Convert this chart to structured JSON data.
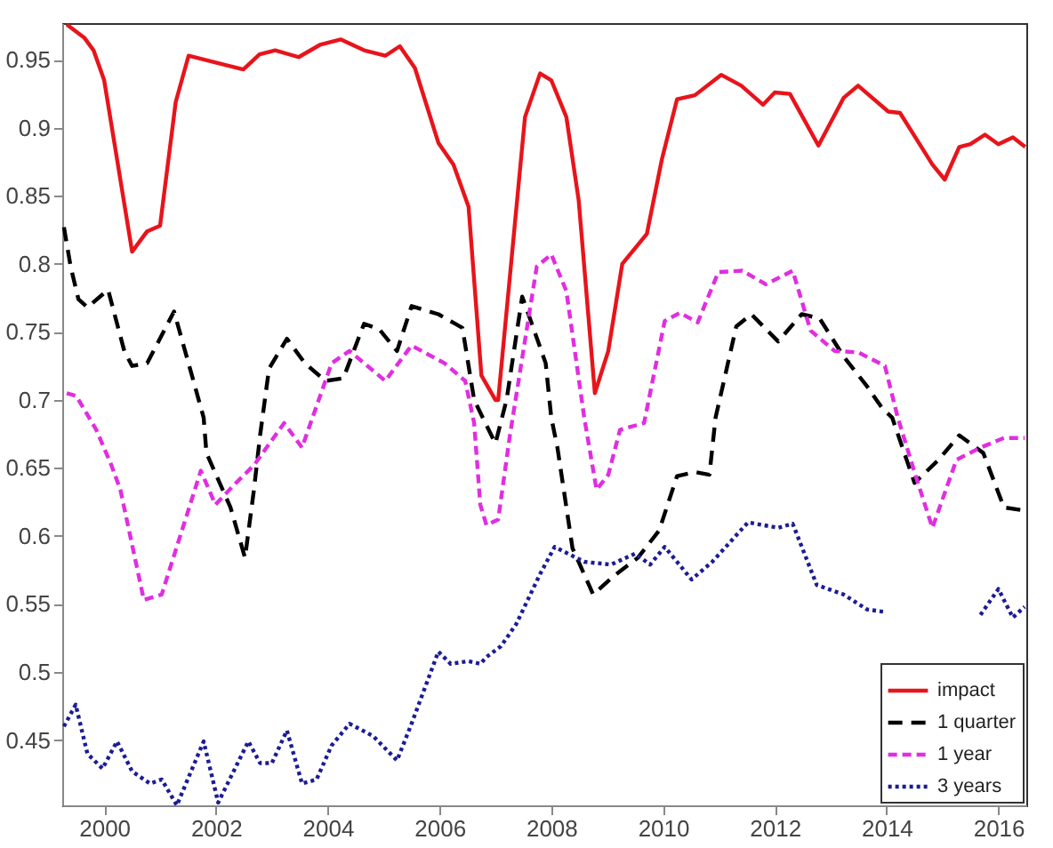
{
  "chart_data": {
    "type": "line",
    "xlim": [
      1999.25,
      2016.5
    ],
    "xticks": [
      2000,
      2002,
      2004,
      2006,
      2008,
      2010,
      2012,
      2014,
      2016
    ],
    "ylim": [
      0.402,
      0.977
    ],
    "yticks": [
      0.45,
      0.5,
      0.55,
      0.6,
      0.65,
      0.7,
      0.75,
      0.8,
      0.85,
      0.9,
      0.95
    ],
    "grid": false,
    "legend": "bottom right",
    "marker": "none",
    "series": [
      {
        "name": "impact",
        "color": "#e8141b",
        "line_style": "solid",
        "x": [
          1999.33,
          1999.65,
          1999.81,
          2000.0,
          2000.5,
          2000.77,
          2001.0,
          2001.28,
          2001.51,
          2002.49,
          2002.78,
          2003.06,
          2003.48,
          2003.86,
          2004.23,
          2004.65,
          2005.03,
          2005.29,
          2005.56,
          2005.98,
          2006.25,
          2006.52,
          2006.75,
          2007.0,
          2007.05,
          2007.53,
          2007.8,
          2008.0,
          2008.27,
          2008.49,
          2008.78,
          2009.02,
          2009.27,
          2009.71,
          2009.98,
          2010.25,
          2010.57,
          2011.04,
          2011.4,
          2011.79,
          2012.0,
          2012.27,
          2012.78,
          2013.23,
          2013.49,
          2014.03,
          2014.24,
          2014.82,
          2015.04,
          2015.3,
          2015.5,
          2015.76,
          2016.0,
          2016.26,
          2016.48
        ],
        "values": [
          0.976,
          0.966,
          0.957,
          0.935,
          0.809,
          0.824,
          0.828,
          0.919,
          0.953,
          0.943,
          0.954,
          0.957,
          0.952,
          0.961,
          0.965,
          0.957,
          0.953,
          0.96,
          0.944,
          0.889,
          0.873,
          0.842,
          0.718,
          0.7,
          0.7,
          0.908,
          0.94,
          0.935,
          0.908,
          0.847,
          0.705,
          0.736,
          0.8,
          0.822,
          0.877,
          0.921,
          0.924,
          0.939,
          0.931,
          0.917,
          0.926,
          0.925,
          0.887,
          0.922,
          0.931,
          0.912,
          0.911,
          0.873,
          0.862,
          0.886,
          0.888,
          0.895,
          0.888,
          0.893,
          0.886
        ]
      },
      {
        "name": "1 quarter",
        "color": "#000000",
        "line_style": "dashed",
        "x": [
          1999.28,
          1999.4,
          1999.54,
          1999.7,
          2000.07,
          2000.36,
          2000.5,
          2000.77,
          2001.25,
          2001.57,
          2001.78,
          2001.83,
          2002.26,
          2002.52,
          2002.68,
          2002.79,
          2002.95,
          2003.27,
          2003.59,
          2003.96,
          2004.28,
          2004.65,
          2004.92,
          2005.24,
          2005.5,
          2005.98,
          2006.41,
          2006.62,
          2007.0,
          2007.2,
          2007.48,
          2007.9,
          2008.0,
          2008.11,
          2008.38,
          2008.75,
          2009.13,
          2009.55,
          2009.93,
          2010.25,
          2010.57,
          2010.83,
          2010.94,
          2011.31,
          2011.58,
          2012.06,
          2012.48,
          2012.8,
          2013.23,
          2013.65,
          2013.92,
          2014.1,
          2014.5,
          2014.93,
          2015.3,
          2015.73,
          2016.1,
          2016.42
        ],
        "values": [
          0.827,
          0.798,
          0.774,
          0.768,
          0.781,
          0.736,
          0.725,
          0.727,
          0.765,
          0.718,
          0.687,
          0.661,
          0.621,
          0.584,
          0.634,
          0.674,
          0.723,
          0.745,
          0.727,
          0.714,
          0.716,
          0.756,
          0.752,
          0.736,
          0.769,
          0.763,
          0.753,
          0.7,
          0.668,
          0.7,
          0.776,
          0.727,
          0.687,
          0.665,
          0.591,
          0.557,
          0.571,
          0.584,
          0.604,
          0.644,
          0.647,
          0.645,
          0.687,
          0.754,
          0.763,
          0.743,
          0.763,
          0.76,
          0.732,
          0.71,
          0.694,
          0.687,
          0.639,
          0.656,
          0.674,
          0.661,
          0.621,
          0.619
        ]
      },
      {
        "name": "1 year",
        "color": "#e02ee0",
        "line_style": "dashed",
        "x": [
          1999.33,
          1999.5,
          1999.86,
          2000.13,
          2000.29,
          2000.71,
          2001.03,
          2001.73,
          2001.99,
          2002.36,
          2002.68,
          2003.22,
          2003.54,
          2004.07,
          2004.39,
          2005.03,
          2005.5,
          2006.09,
          2006.46,
          2006.62,
          2006.73,
          2006.84,
          2007.05,
          2007.26,
          2007.74,
          2008.0,
          2008.27,
          2008.59,
          2008.81,
          2009.02,
          2009.23,
          2009.66,
          2010.03,
          2010.3,
          2010.62,
          2010.99,
          2011.42,
          2011.84,
          2012.32,
          2012.64,
          2013.07,
          2013.49,
          2013.97,
          2014.2,
          2014.56,
          2014.82,
          2015.25,
          2015.68,
          2016.1,
          2016.47
        ],
        "values": [
          0.705,
          0.703,
          0.678,
          0.652,
          0.634,
          0.553,
          0.557,
          0.648,
          0.623,
          0.639,
          0.652,
          0.683,
          0.665,
          0.727,
          0.736,
          0.714,
          0.74,
          0.727,
          0.714,
          0.683,
          0.623,
          0.608,
          0.612,
          0.674,
          0.798,
          0.807,
          0.78,
          0.687,
          0.634,
          0.645,
          0.678,
          0.683,
          0.758,
          0.764,
          0.757,
          0.794,
          0.795,
          0.785,
          0.795,
          0.751,
          0.736,
          0.735,
          0.725,
          0.687,
          0.639,
          0.606,
          0.656,
          0.665,
          0.672,
          0.672
        ]
      },
      {
        "name": "3 years",
        "color": "#1c1c96",
        "line_style": "dotted",
        "x": [
          1999.28,
          1999.49,
          1999.7,
          1999.97,
          2000.23,
          2000.5,
          2000.82,
          2001.03,
          2001.3,
          2001.78,
          2002.04,
          2002.58,
          2002.79,
          2003.0,
          2003.27,
          2003.54,
          2003.8,
          2004.07,
          2004.39,
          2004.81,
          2005.24,
          2005.5,
          2005.98,
          2006.2,
          2006.52,
          2006.73,
          2006.84,
          2007.1,
          2007.37,
          2007.8,
          2008.06,
          2008.59,
          2009.07,
          2009.5,
          2009.77,
          2010.03,
          2010.51,
          2010.88,
          2011.52,
          2012.06,
          2012.32,
          2012.75,
          2013.23,
          2013.65,
          2014.0,
          2014.8,
          2015.68,
          2016.0,
          2016.26,
          2016.47
        ],
        "values": [
          0.46,
          0.476,
          0.44,
          0.429,
          0.449,
          0.427,
          0.418,
          0.421,
          0.402,
          0.449,
          0.404,
          0.449,
          0.433,
          0.433,
          0.457,
          0.418,
          0.421,
          0.446,
          0.462,
          0.453,
          0.435,
          0.462,
          0.515,
          0.506,
          0.508,
          0.506,
          0.511,
          0.519,
          0.535,
          0.572,
          0.592,
          0.581,
          0.579,
          0.587,
          0.579,
          0.592,
          0.568,
          0.581,
          0.61,
          0.606,
          0.609,
          0.564,
          0.557,
          0.546,
          0.544,
          null,
          0.542,
          0.561,
          0.54,
          0.548
        ]
      }
    ]
  }
}
